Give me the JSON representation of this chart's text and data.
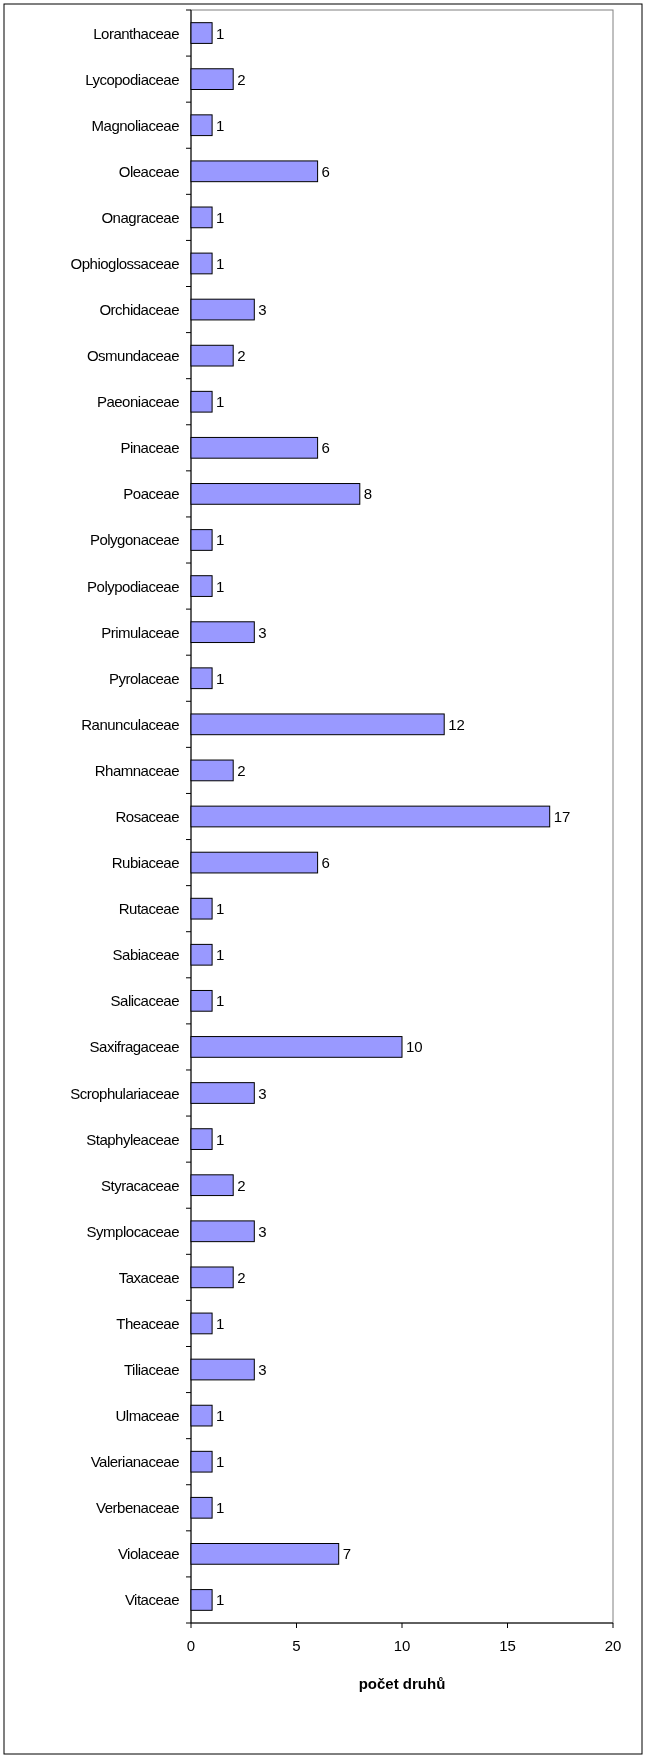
{
  "chart_data": {
    "type": "bar",
    "orientation": "horizontal",
    "xlabel": "počet druhů",
    "categories": [
      "Loranthaceae",
      "Lycopodiaceae",
      "Magnoliaceae",
      "Oleaceae",
      "Onagraceae",
      "Ophioglossaceae",
      "Orchidaceae",
      "Osmundaceae",
      "Paeoniaceae",
      "Pinaceae",
      "Poaceae",
      "Polygonaceae",
      "Polypodiaceae",
      "Primulaceae",
      "Pyrolaceae",
      "Ranunculaceae",
      "Rhamnaceae",
      "Rosaceae",
      "Rubiaceae",
      "Rutaceae",
      "Sabiaceae",
      "Salicaceae",
      "Saxifragaceae",
      "Scrophulariaceae",
      "Staphyleaceae",
      "Styracaceae",
      "Symplocaceae",
      "Taxaceae",
      "Theaceae",
      "Tiliaceae",
      "Ulmaceae",
      "Valerianaceae",
      "Verbenaceae",
      "Violaceae",
      "Vitaceae"
    ],
    "values": [
      1,
      2,
      1,
      6,
      1,
      1,
      3,
      2,
      1,
      6,
      8,
      1,
      1,
      3,
      1,
      12,
      2,
      17,
      6,
      1,
      1,
      1,
      10,
      3,
      1,
      2,
      3,
      2,
      1,
      3,
      1,
      1,
      1,
      7,
      1
    ],
    "color": "#9999ff",
    "xlim": [
      0,
      20
    ],
    "xticks": [
      0,
      5,
      10,
      15,
      20
    ],
    "data_labels": true
  }
}
